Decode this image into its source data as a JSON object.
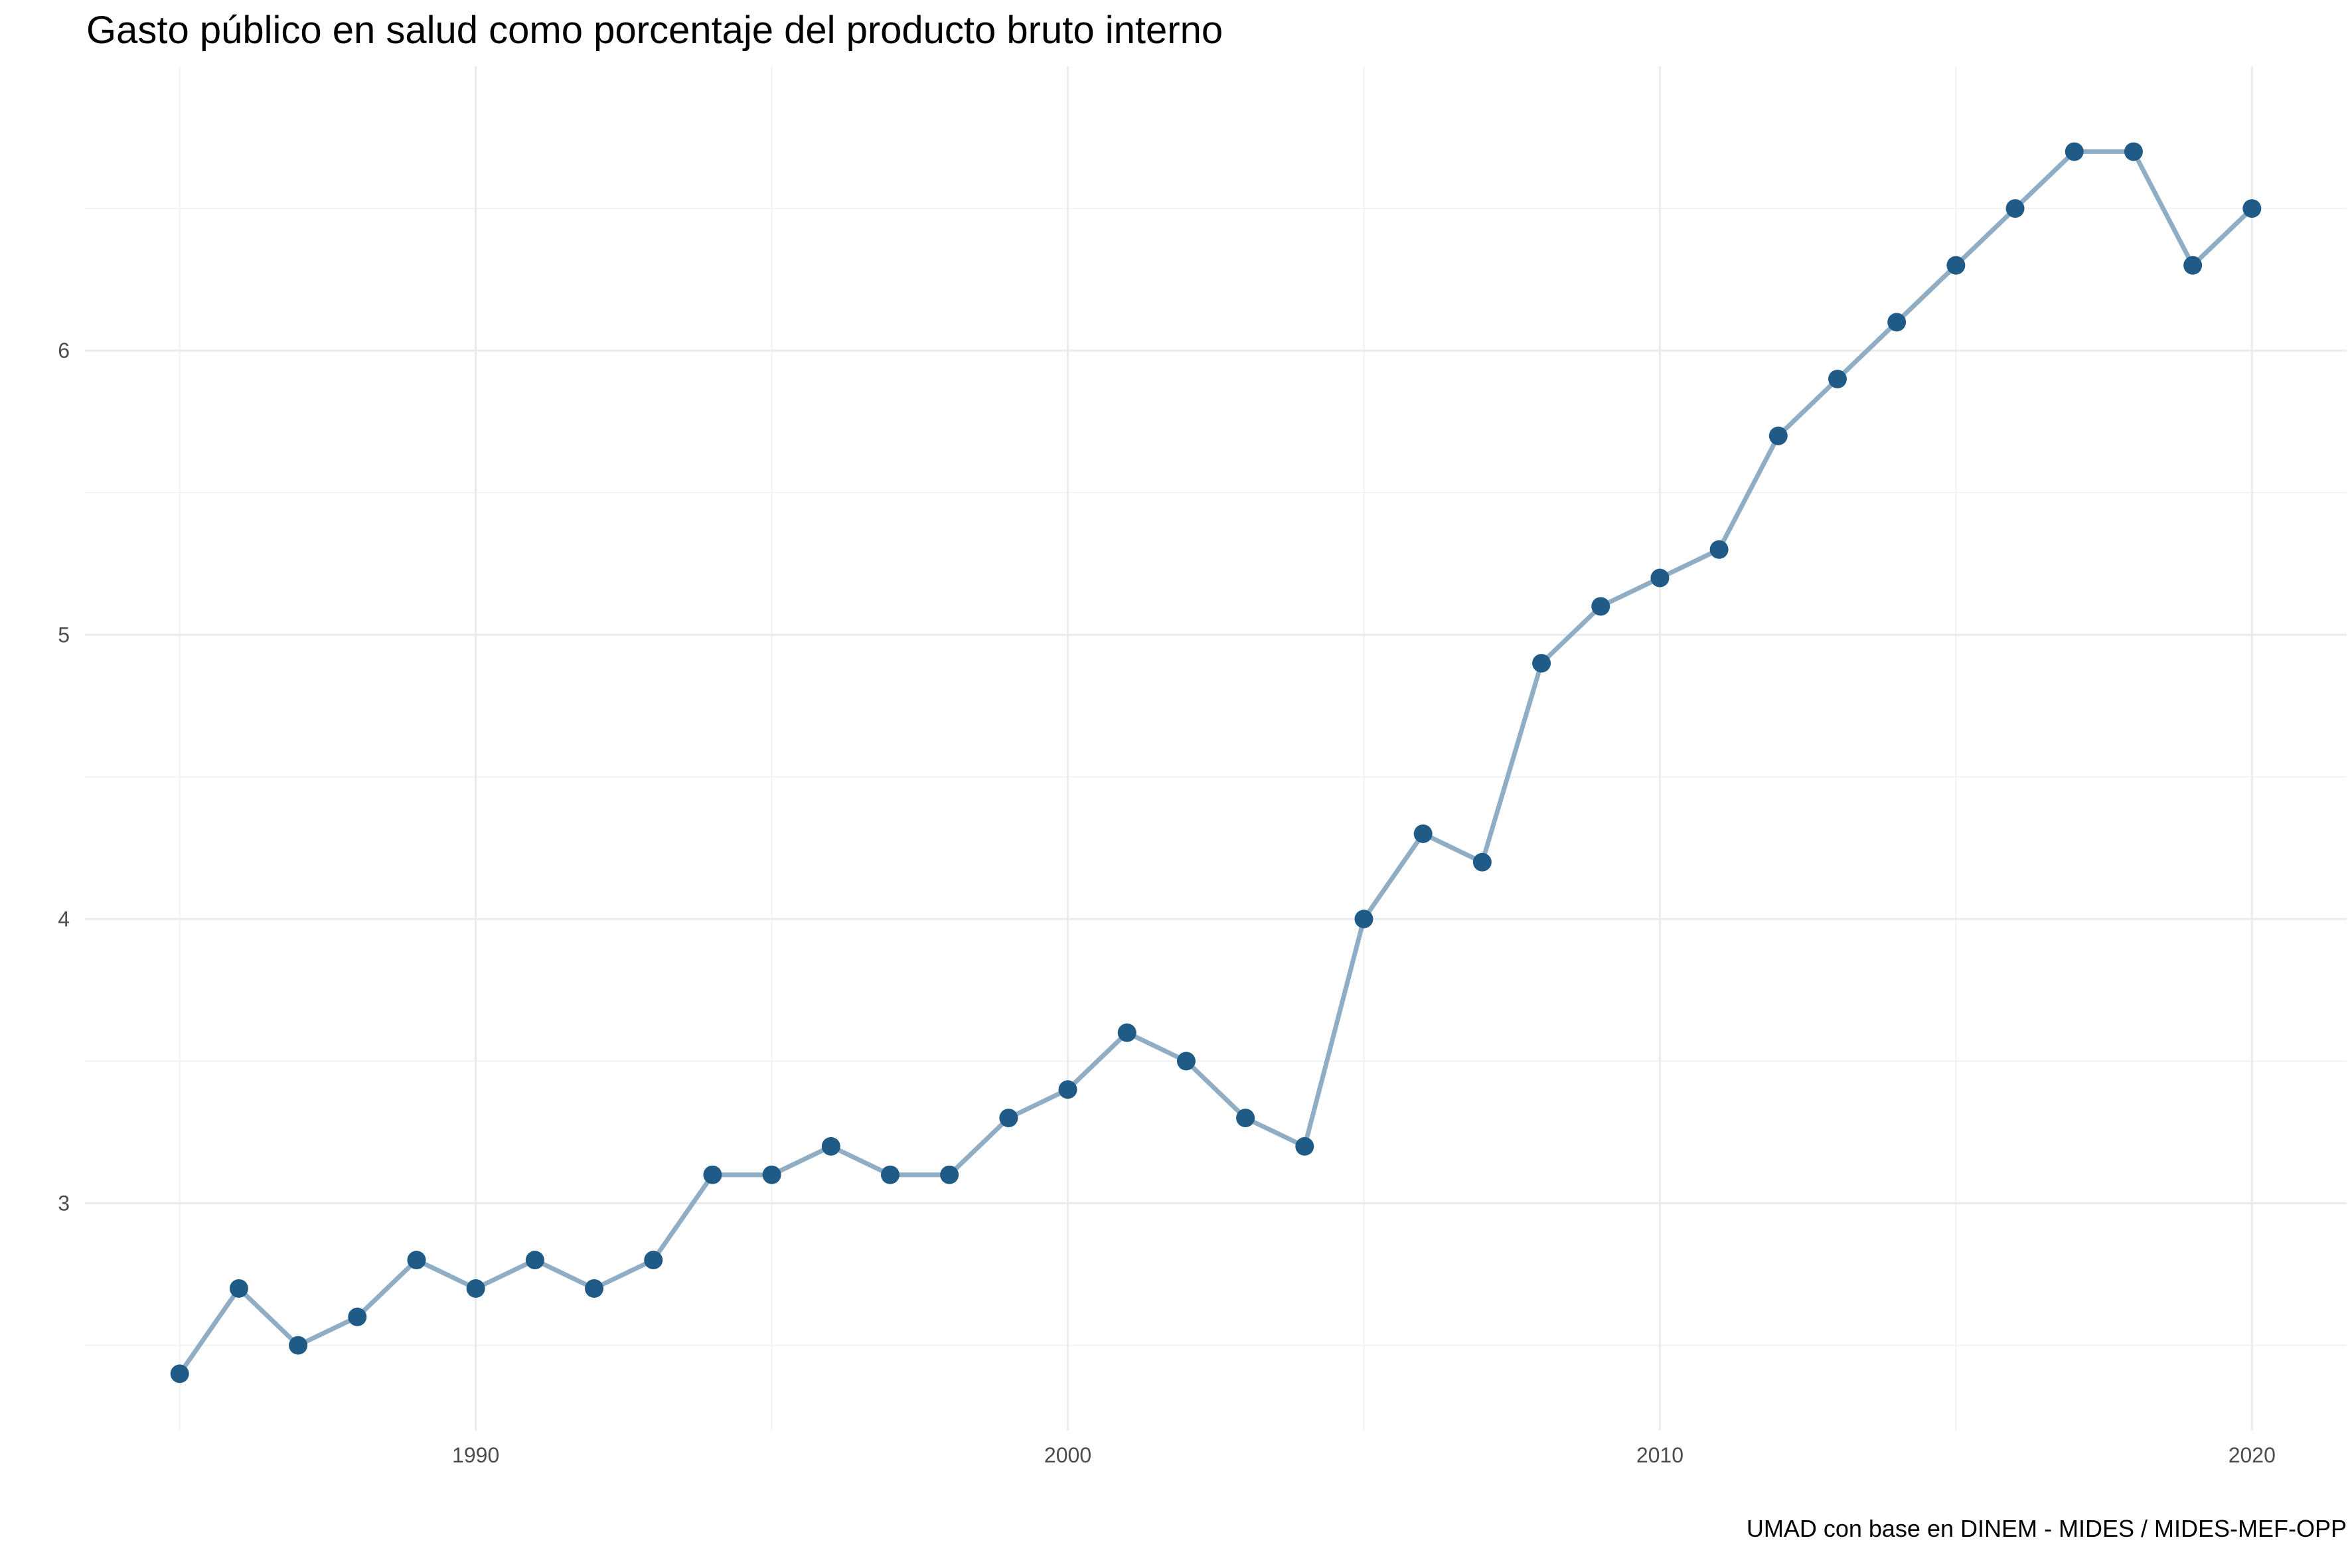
{
  "chart_data": {
    "type": "line",
    "title": "Gasto público en salud como porcentaje del producto bruto interno",
    "caption": "UMAD con base en DINEM - MIDES / MIDES-MEF-OPP",
    "xlabel": "",
    "ylabel": "",
    "xlim": [
      1983.4,
      2021.6
    ],
    "ylim": [
      2.2,
      7.0
    ],
    "x_ticks": [
      1990,
      2000,
      2010,
      2020
    ],
    "x_minor_ticks": [
      1985,
      1995,
      2005,
      2015
    ],
    "y_ticks": [
      3,
      4,
      5,
      6
    ],
    "y_minor_ticks": [
      2.5,
      3.5,
      4.5,
      5.5,
      6.5
    ],
    "grid": true,
    "legend": "none",
    "line_color": "#8fadc4",
    "point_color": "#1f5b86",
    "series": [
      {
        "x": [
          1985,
          1986,
          1987,
          1988,
          1989,
          1990,
          1991,
          1992,
          1993,
          1994,
          1995,
          1996,
          1997,
          1998,
          1999,
          2000,
          2001,
          2002,
          2003,
          2004,
          2005,
          2006,
          2007,
          2008,
          2009,
          2010,
          2011,
          2012,
          2013,
          2014,
          2015,
          2016,
          2017,
          2018,
          2019,
          2020
        ],
        "values": [
          2.4,
          2.7,
          2.5,
          2.6,
          2.8,
          2.7,
          2.8,
          2.7,
          2.8,
          3.1,
          3.1,
          3.2,
          3.1,
          3.1,
          3.3,
          3.4,
          3.6,
          3.5,
          3.3,
          3.2,
          4.0,
          4.3,
          4.2,
          4.9,
          5.1,
          5.2,
          5.3,
          5.7,
          5.9,
          6.1,
          6.3,
          6.5,
          6.7,
          6.7,
          6.3,
          6.5
        ]
      }
    ]
  }
}
